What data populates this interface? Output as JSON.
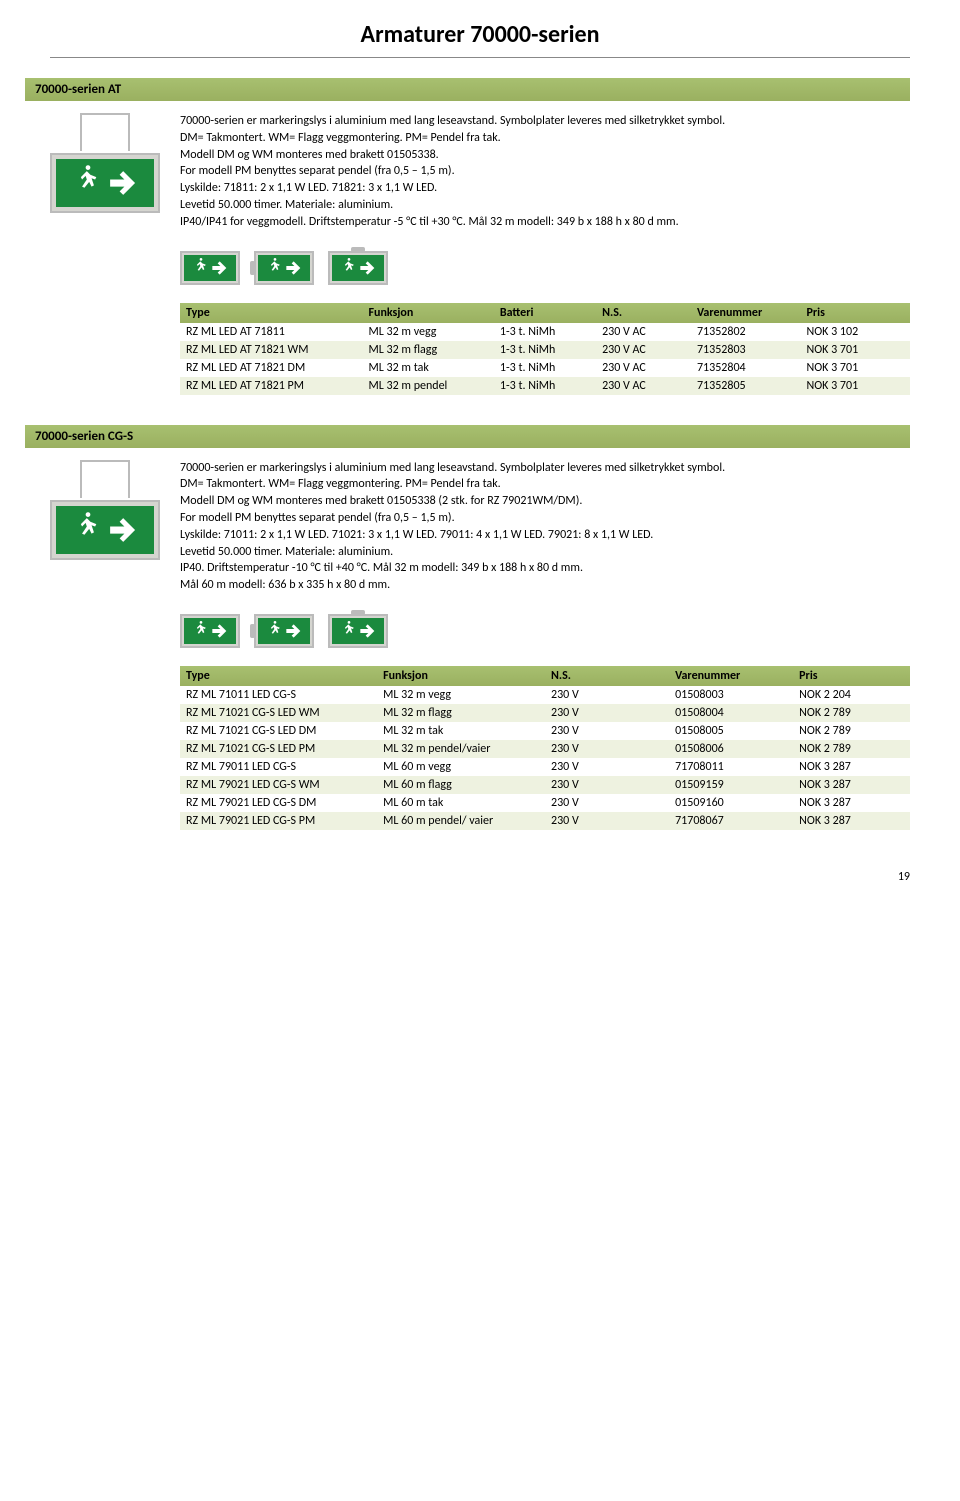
{
  "page_title": "Armaturer 70000-serien",
  "page_number": "19",
  "colors": {
    "header_green": "#9ab060",
    "row_alt": "#eef2e0",
    "sign_green": "#1b8a3e",
    "sign_frame": "#d5d5d0"
  },
  "section1": {
    "header": "70000-serien AT",
    "description": [
      "70000-serien er markeringslys i aluminium med lang leseavstand. Symbolplater leveres med silketrykket symbol.",
      "DM= Takmontert.   WM= Flagg veggmontering.   PM= Pendel fra tak.",
      "Modell DM og WM monteres med brakett 01505338.",
      "For modell PM benyttes separat pendel (fra 0,5 – 1,5 m).",
      "Lyskilde: 71811: 2 x 1,1 W LED.   71821: 3 x 1,1 W LED.",
      "Levetid 50.000 timer. Materiale: aluminium.",
      "IP40/IP41 for veggmodell. Driftstemperatur -5 °C til +30 °C. Mål 32 m modell: 349 b x 188 h x 80 d mm."
    ],
    "table": {
      "columns": [
        "Type",
        "Funksjon",
        "Batteri",
        "N.S.",
        "Varenummer",
        "Pris"
      ],
      "rows": [
        [
          "RZ ML LED AT 71811",
          "ML 32 m vegg",
          "1-3 t. NiMh",
          "230 V AC",
          "71352802",
          "NOK 3 102"
        ],
        [
          "RZ ML LED AT 71821 WM",
          "ML 32 m flagg",
          "1-3 t. NiMh",
          "230 V AC",
          "71352803",
          "NOK 3 701"
        ],
        [
          "RZ ML LED AT 71821 DM",
          "ML 32 m tak",
          "1-3 t. NiMh",
          "230 V AC",
          "71352804",
          "NOK 3 701"
        ],
        [
          "RZ ML LED AT 71821 PM",
          "ML 32 m pendel",
          "1-3 t. NiMh",
          "230 V AC",
          "71352805",
          "NOK 3 701"
        ]
      ],
      "col_widths": [
        "25%",
        "18%",
        "14%",
        "13%",
        "15%",
        "15%"
      ]
    }
  },
  "section2": {
    "header": "70000-serien CG-S",
    "description": [
      "70000-serien er markeringslys i aluminium med lang leseavstand. Symbolplater leveres med silketrykket symbol.",
      "DM= Takmontert.   WM= Flagg veggmontering.   PM= Pendel fra tak.",
      "Modell DM og WM monteres med brakett 01505338 (2 stk. for RZ 79021WM/DM).",
      "For modell PM benyttes separat pendel (fra 0,5 – 1,5 m).",
      "Lyskilde: 71011: 2 x 1,1 W LED.   71021: 3 x 1,1 W LED.   79011: 4 x 1,1 W LED.   79021: 8 x 1,1 W LED.",
      "Levetid 50.000 timer. Materiale: aluminium.",
      "IP40. Driftstemperatur -10 °C til +40 °C. Mål 32 m modell: 349 b x 188 h x 80 d mm.",
      "Mål 60 m modell: 636 b x 335 h x 80 d mm."
    ],
    "table": {
      "columns": [
        "Type",
        "Funksjon",
        "N.S.",
        "Varenummer",
        "Pris"
      ],
      "rows": [
        [
          "RZ ML 71011 LED CG-S",
          "ML 32 m vegg",
          "230 V",
          "01508003",
          "NOK 2 204"
        ],
        [
          "RZ ML 71021 CG-S LED WM",
          "ML 32 m flagg",
          "230 V",
          "01508004",
          "NOK 2 789"
        ],
        [
          "RZ ML 71021 CG-S LED DM",
          "ML 32 m tak",
          "230 V",
          "01508005",
          "NOK 2 789"
        ],
        [
          "RZ ML 71021 CG-S LED PM",
          "ML 32 m pendel/vaier",
          "230 V",
          "01508006",
          "NOK 2 789"
        ],
        [
          "RZ ML 79011 LED CG-S",
          "ML 60 m vegg",
          "230 V",
          "71708011",
          "NOK 3 287"
        ],
        [
          "RZ ML 79021 LED CG-S WM",
          "ML 60 m flagg",
          "230 V",
          "01509159",
          "NOK 3 287"
        ],
        [
          "RZ ML 79021 LED CG-S DM",
          "ML 60 m tak",
          "230 V",
          "01509160",
          "NOK 3 287"
        ],
        [
          "RZ ML 79021 LED CG-S PM",
          "ML 60 m pendel/ vaier",
          "230 V",
          "71708067",
          "NOK 3 287"
        ]
      ],
      "col_widths": [
        "27%",
        "23%",
        "17%",
        "17%",
        "16%"
      ]
    }
  }
}
